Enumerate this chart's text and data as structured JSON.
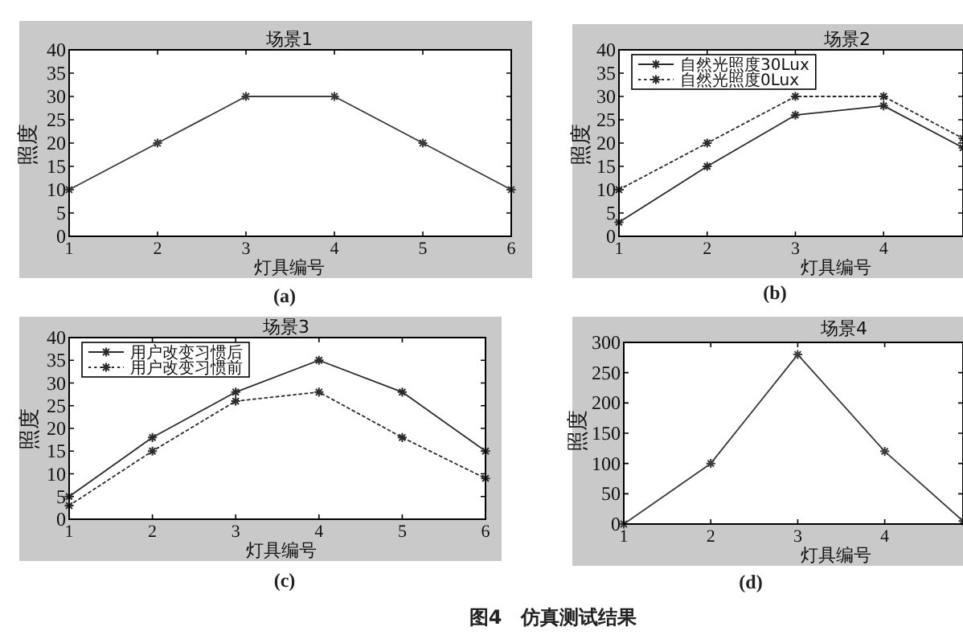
{
  "chart_data": [
    {
      "type": "line",
      "title": "场景1",
      "xlabel": "灯具编号",
      "ylabel": "照度",
      "x": [
        1,
        2,
        3,
        4,
        5,
        6
      ],
      "series": [
        {
          "color": "#3a3a3a",
          "line_style": "solid",
          "values": [
            10,
            20,
            30,
            30,
            20,
            10
          ]
        }
      ],
      "xlim": [
        1,
        6
      ],
      "ylim": [
        0,
        40
      ],
      "xticks": [
        1,
        2,
        3,
        4,
        5,
        6
      ],
      "yticks": [
        0,
        5,
        10,
        15,
        20,
        25,
        30,
        35,
        40
      ],
      "marker": "cross",
      "annotations": [
        "(a)"
      ]
    },
    {
      "type": "line",
      "title": "场景2",
      "xlabel": "灯具编号",
      "ylabel": "照度",
      "x": [
        1,
        2,
        3,
        4,
        4.9
      ],
      "series": [
        {
          "name": "自然光照度30Lux",
          "color": "#2a2a2a",
          "line_style": "solid",
          "values": [
            3,
            15,
            26,
            28,
            19
          ]
        },
        {
          "name": "自然光照度0Lux",
          "color": "#2a2a2a",
          "line_style": "dotted",
          "values": [
            10,
            20,
            30,
            30,
            21
          ]
        }
      ],
      "xlim": [
        1,
        4.9
      ],
      "ylim": [
        0,
        40
      ],
      "xticks": [
        1,
        2,
        3,
        4
      ],
      "yticks": [
        0,
        5,
        10,
        15,
        20,
        25,
        30,
        35,
        40
      ],
      "marker": "cross",
      "legend": "top left",
      "annotations": [
        "(b)"
      ]
    },
    {
      "type": "line",
      "title": "场景3",
      "xlabel": "灯具编号",
      "ylabel": "照度",
      "x": [
        1,
        2,
        3,
        4,
        5,
        6
      ],
      "series": [
        {
          "name": "用户改变习惯后",
          "color": "#2a2a2a",
          "line_style": "solid",
          "values": [
            5,
            18,
            28,
            35,
            28,
            15
          ]
        },
        {
          "name": "用户改变习惯前",
          "color": "#2a2a2a",
          "line_style": "dotted",
          "values": [
            3,
            15,
            26,
            28,
            18,
            9
          ]
        }
      ],
      "xlim": [
        1,
        6
      ],
      "ylim": [
        0,
        40
      ],
      "xticks": [
        1,
        2,
        3,
        4,
        5,
        6
      ],
      "yticks": [
        0,
        5,
        10,
        15,
        20,
        25,
        30,
        35,
        40
      ],
      "marker": "cross",
      "legend": "top left",
      "annotations": [
        "(c)"
      ]
    },
    {
      "type": "line",
      "title": "场景4",
      "xlabel": "灯具编号",
      "ylabel": "照度",
      "x": [
        1,
        2,
        3,
        4,
        4.9
      ],
      "series": [
        {
          "color": "#3a3a3a",
          "line_style": "solid",
          "values": [
            0,
            100,
            280,
            120,
            5
          ]
        }
      ],
      "xlim": [
        1,
        4.9
      ],
      "ylim": [
        0,
        300
      ],
      "xticks": [
        1,
        2,
        3,
        4
      ],
      "yticks": [
        0,
        50,
        100,
        150,
        200,
        250,
        300
      ],
      "marker": "cross",
      "annotations": [
        "(d)",
        "图4　仿真测试结果"
      ]
    }
  ]
}
